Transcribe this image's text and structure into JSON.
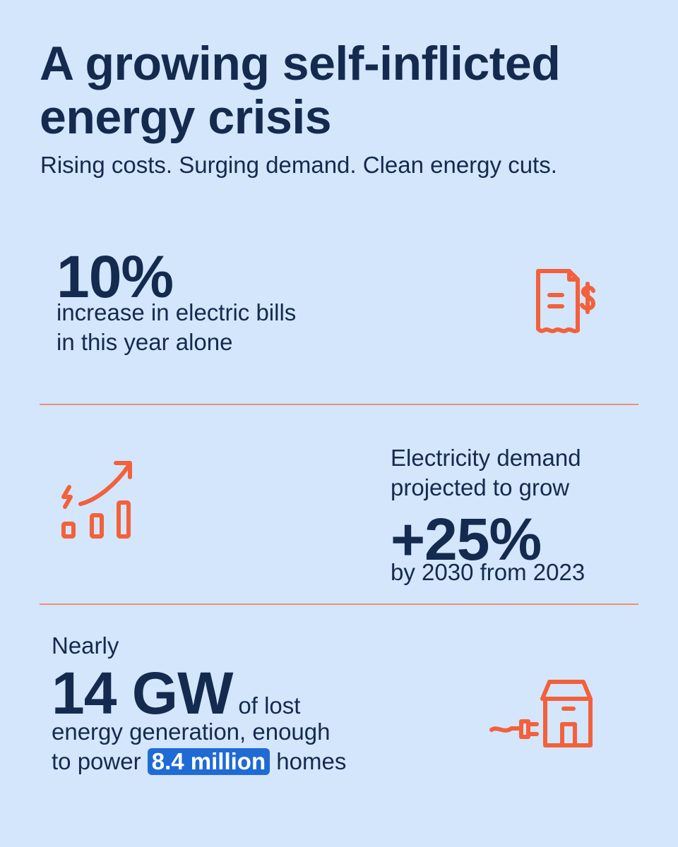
{
  "header": {
    "title": "A growing self-inflicted energy crisis",
    "subtitle": "Rising costs. Surging demand. Clean energy cuts."
  },
  "stat_bills": {
    "value": "10%",
    "line1": "increase in electric bills",
    "line2": "in this year alone",
    "icon": "receipt-dollar-icon"
  },
  "stat_demand": {
    "pre_line1": "Electricity demand",
    "pre_line2": "projected to grow",
    "value": "+25%",
    "post": "by 2030 from 2023",
    "icon": "rising-bar-chart-icon"
  },
  "stat_generation": {
    "pre": "Nearly",
    "value": "14 GW",
    "inline": "of lost",
    "line2": "energy generation, enough",
    "line3_prefix": "to power",
    "highlight": "8.4 million",
    "line3_suffix": "homes",
    "icon": "plug-house-icon"
  },
  "colors": {
    "background": "#d3e6fb",
    "text": "#152a4f",
    "accent": "#f2613c",
    "divider": "#ef8f73",
    "highlight": "#1f6bd6"
  }
}
